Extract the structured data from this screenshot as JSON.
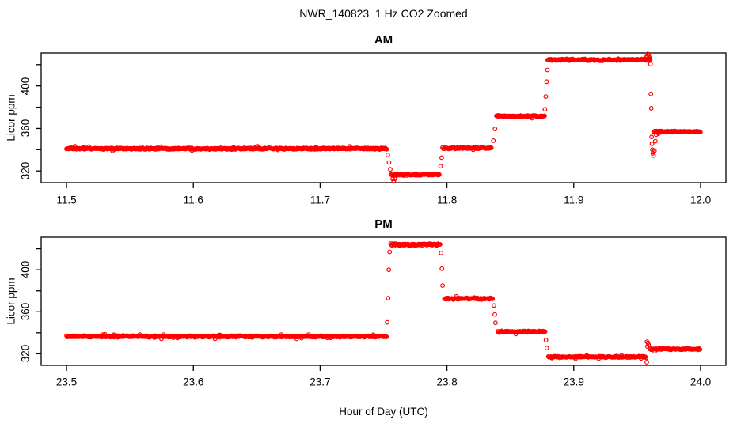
{
  "page": {
    "title": "NWR_140823  1 Hz CO2 Zoomed",
    "xlabel": "Hour of Day (UTC)"
  },
  "style": {
    "point_color": "#ff0000",
    "axis_color": "#000000",
    "background": "#ffffff"
  },
  "chart_data": [
    {
      "type": "scatter",
      "panel_title": "AM",
      "ylabel": "Licor ppm",
      "marker": "open-circle",
      "legend": "none",
      "grid": false,
      "xlim": [
        11.48,
        12.02
      ],
      "ylim": [
        309,
        431
      ],
      "xticks": [
        11.5,
        11.6,
        11.7,
        11.8,
        11.9,
        12.0
      ],
      "xtick_labels": [
        "11.5",
        "11.6",
        "11.7",
        "11.8",
        "11.9",
        "12.0"
      ],
      "yticks": [
        320,
        340,
        360,
        380,
        400,
        420
      ],
      "ytick_labels": [
        "320",
        "",
        "360",
        "",
        "400",
        ""
      ],
      "segments": [
        {
          "x0": 11.5,
          "x1": 11.7525,
          "y": 341.0,
          "noise": 0.9
        },
        {
          "x0": 11.756,
          "x1": 11.794,
          "y": 316.5,
          "noise": 0.9
        },
        {
          "x0": 11.7965,
          "x1": 11.8355,
          "y": 341.5,
          "noise": 0.9
        },
        {
          "x0": 11.839,
          "x1": 11.877,
          "y": 371.5,
          "noise": 0.9
        },
        {
          "x0": 11.8795,
          "x1": 11.9605,
          "y": 424.5,
          "noise": 1.1
        },
        {
          "x0": 11.963,
          "x1": 12.0,
          "y": 357.0,
          "noise": 0.9
        }
      ],
      "extra_points": [
        [
          11.7533,
          335.0
        ],
        [
          11.7543,
          328.0
        ],
        [
          11.7553,
          321.5
        ],
        [
          11.7572,
          312.5
        ],
        [
          11.758,
          310.5
        ],
        [
          11.7589,
          312.5
        ],
        [
          11.795,
          324.5
        ],
        [
          11.7958,
          332.5
        ],
        [
          11.8366,
          348.5
        ],
        [
          11.8379,
          359.5
        ],
        [
          11.8773,
          378.0
        ],
        [
          11.8779,
          390.0
        ],
        [
          11.8786,
          404.0
        ],
        [
          11.8792,
          415.0
        ],
        [
          11.9572,
          427.0
        ],
        [
          11.9578,
          428.5
        ],
        [
          11.9584,
          430.0
        ],
        [
          11.959,
          429.0
        ],
        [
          11.9596,
          427.0
        ],
        [
          11.9602,
          424.0
        ],
        [
          11.9605,
          420.5
        ],
        [
          11.9608,
          392.5
        ],
        [
          11.9611,
          379.0
        ],
        [
          11.9614,
          352.0
        ],
        [
          11.9617,
          345.5
        ],
        [
          11.962,
          340.0
        ],
        [
          11.9624,
          336.5
        ],
        [
          11.9629,
          334.5
        ],
        [
          11.9636,
          339.0
        ],
        [
          11.9643,
          348.0
        ],
        [
          11.965,
          354.0
        ]
      ]
    },
    {
      "type": "scatter",
      "panel_title": "PM",
      "ylabel": "Licor ppm",
      "marker": "open-circle",
      "legend": "none",
      "grid": false,
      "xlim": [
        23.48,
        24.02
      ],
      "ylim": [
        309,
        431
      ],
      "xticks": [
        23.5,
        23.6,
        23.7,
        23.8,
        23.9,
        24.0
      ],
      "xtick_labels": [
        "23.5",
        "23.6",
        "23.7",
        "23.8",
        "23.9",
        "24.0"
      ],
      "yticks": [
        320,
        340,
        360,
        380,
        400,
        420
      ],
      "ytick_labels": [
        "320",
        "",
        "360",
        "",
        "400",
        ""
      ],
      "segments": [
        {
          "x0": 23.5,
          "x1": 23.7525,
          "y": 336.5,
          "noise": 0.9
        },
        {
          "x0": 23.7555,
          "x1": 23.795,
          "y": 424.0,
          "noise": 1.1
        },
        {
          "x0": 23.798,
          "x1": 23.8365,
          "y": 372.5,
          "noise": 0.9
        },
        {
          "x0": 23.84,
          "x1": 23.8775,
          "y": 341.0,
          "noise": 0.9
        },
        {
          "x0": 23.88,
          "x1": 23.9575,
          "y": 317.0,
          "noise": 0.9
        },
        {
          "x0": 23.96,
          "x1": 24.0,
          "y": 324.5,
          "noise": 0.9
        }
      ],
      "extra_points": [
        [
          23.7529,
          350.0
        ],
        [
          23.7536,
          373.0
        ],
        [
          23.7542,
          400.0
        ],
        [
          23.7548,
          417.0
        ],
        [
          23.7954,
          416.0
        ],
        [
          23.796,
          401.0
        ],
        [
          23.7966,
          385.0
        ],
        [
          23.8371,
          366.0
        ],
        [
          23.8377,
          357.5
        ],
        [
          23.8383,
          349.5
        ],
        [
          23.8781,
          333.0
        ],
        [
          23.8787,
          325.5
        ],
        [
          23.9576,
          312.0
        ],
        [
          23.9577,
          331.5
        ],
        [
          23.9581,
          327.0
        ],
        [
          23.9585,
          330.5
        ],
        [
          23.959,
          328.5
        ]
      ]
    }
  ]
}
